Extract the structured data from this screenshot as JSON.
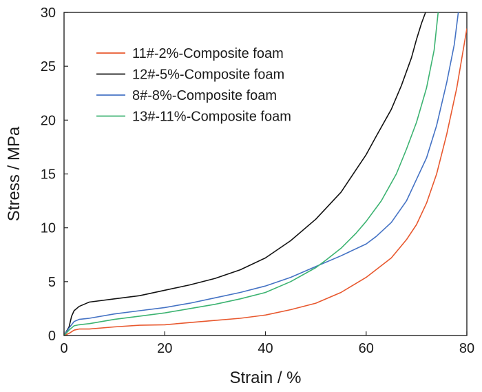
{
  "chart_data": {
    "type": "line",
    "title": "",
    "xlabel": "Strain / %",
    "ylabel": "Stress / MPa",
    "xlim": [
      0,
      80
    ],
    "ylim": [
      0,
      30
    ],
    "xticks": [
      "0",
      "20",
      "40",
      "60",
      "80"
    ],
    "yticks": [
      "0",
      "5",
      "10",
      "15",
      "20",
      "25",
      "30"
    ],
    "grid": false,
    "legend_position": "top-left",
    "series": [
      {
        "name": "11#-2%-Composite foam",
        "color": "#e8582e",
        "x": [
          0,
          1,
          2,
          3,
          5,
          10,
          15,
          20,
          25,
          30,
          35,
          40,
          45,
          50,
          55,
          60,
          65,
          68,
          70,
          72,
          74,
          76,
          78,
          80
        ],
        "y": [
          0,
          0.2,
          0.5,
          0.6,
          0.6,
          0.8,
          0.95,
          1.0,
          1.2,
          1.4,
          1.6,
          1.9,
          2.4,
          3.0,
          4.0,
          5.4,
          7.2,
          8.9,
          10.3,
          12.3,
          15.0,
          18.7,
          23.0,
          28.5
        ]
      },
      {
        "name": "12#-5%-Composite foam",
        "color": "#111111",
        "x": [
          0,
          1,
          1.5,
          2,
          3,
          5,
          10,
          15,
          20,
          25,
          30,
          35,
          40,
          45,
          50,
          55,
          60,
          62,
          65,
          67,
          69,
          70,
          71,
          71.8
        ],
        "y": [
          0,
          0.8,
          1.8,
          2.3,
          2.7,
          3.1,
          3.4,
          3.7,
          4.2,
          4.7,
          5.3,
          6.1,
          7.2,
          8.8,
          10.8,
          13.3,
          16.8,
          18.5,
          21.0,
          23.2,
          25.8,
          27.5,
          29.0,
          30.0
        ]
      },
      {
        "name": "8#-8%-Composite foam",
        "color": "#4472c4",
        "x": [
          0,
          1,
          2,
          3,
          5,
          10,
          15,
          20,
          25,
          30,
          35,
          40,
          45,
          50,
          55,
          60,
          62,
          65,
          68,
          70,
          72,
          74,
          76,
          77.5,
          78.3
        ],
        "y": [
          0,
          0.7,
          1.3,
          1.5,
          1.6,
          2.0,
          2.3,
          2.6,
          3.0,
          3.5,
          4.0,
          4.6,
          5.4,
          6.4,
          7.4,
          8.5,
          9.2,
          10.5,
          12.5,
          14.5,
          16.5,
          19.5,
          23.5,
          27.0,
          30.0
        ]
      },
      {
        "name": "13#-11%-Composite foam",
        "color": "#3cb371",
        "x": [
          0,
          1,
          2,
          3,
          5,
          10,
          15,
          20,
          25,
          30,
          35,
          40,
          45,
          50,
          52,
          55,
          58,
          60,
          63,
          66,
          68,
          70,
          72,
          73.5,
          74.3
        ],
        "y": [
          0,
          0.5,
          0.9,
          1.0,
          1.1,
          1.5,
          1.8,
          2.1,
          2.5,
          2.9,
          3.4,
          4.0,
          5.0,
          6.3,
          7.0,
          8.1,
          9.5,
          10.6,
          12.5,
          15.0,
          17.3,
          19.8,
          23.0,
          26.5,
          30.0
        ]
      }
    ]
  }
}
